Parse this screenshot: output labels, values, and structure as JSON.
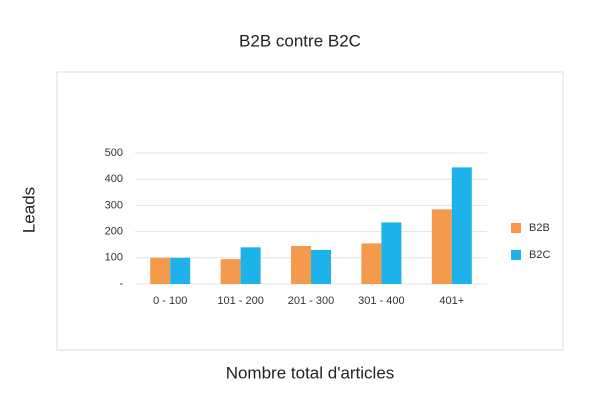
{
  "chart_data": {
    "type": "bar",
    "title": "B2B contre B2C",
    "x_label": "Nombre total d'articles",
    "y_label": "Leads",
    "categories": [
      "0 - 100",
      "101 - 200",
      "201 - 300",
      "301 - 400",
      "401+"
    ],
    "series": [
      {
        "name": "B2B",
        "color": "#f39a4c",
        "values": [
          100,
          95,
          145,
          155,
          285
        ]
      },
      {
        "name": "B2C",
        "color": "#1fb1e9",
        "values": [
          100,
          140,
          130,
          235,
          445
        ]
      }
    ],
    "ylim": [
      0,
      500
    ],
    "yticks": [
      {
        "value": 0,
        "label": "-"
      },
      100,
      200,
      300,
      400,
      500
    ],
    "grid": true,
    "legend": "right"
  }
}
